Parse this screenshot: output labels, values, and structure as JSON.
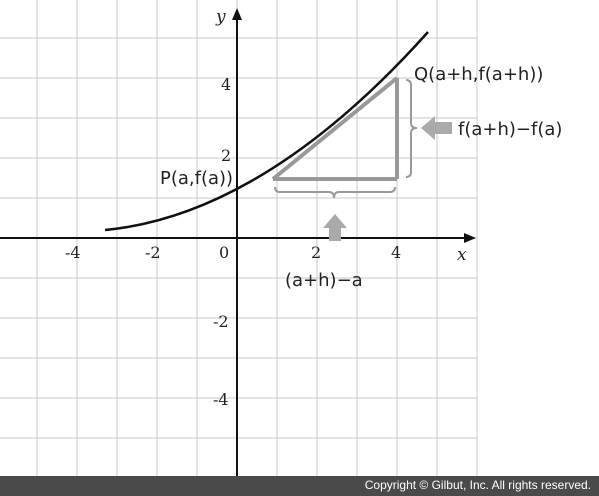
{
  "figure": {
    "axes": {
      "x_label": "x",
      "y_label": "y"
    },
    "x_ticks": [
      {
        "value": -4,
        "label": "-4"
      },
      {
        "value": -2,
        "label": "-2"
      },
      {
        "value": 0,
        "label": "0"
      },
      {
        "value": 2,
        "label": "2"
      },
      {
        "value": 4,
        "label": "4"
      }
    ],
    "y_ticks": [
      {
        "value": 4,
        "label": "4"
      },
      {
        "value": 2,
        "label": "2"
      },
      {
        "value": -2,
        "label": "-2"
      },
      {
        "value": -4,
        "label": "-4"
      }
    ],
    "point_p_label": "P(a,f(a))",
    "point_q_label": "Q(a+h,f(a+h))",
    "vertical_difference_label": "f(a+h)−f(a)",
    "horizontal_difference_label": "(a+h)−a",
    "colors": {
      "curve": "#111111",
      "secant": "#999999",
      "grid": "#c8c8c8",
      "arrow": "#aaaaaa"
    }
  },
  "footer": {
    "copyright": "Copyright © Gilbut, Inc. All rights reserved."
  }
}
